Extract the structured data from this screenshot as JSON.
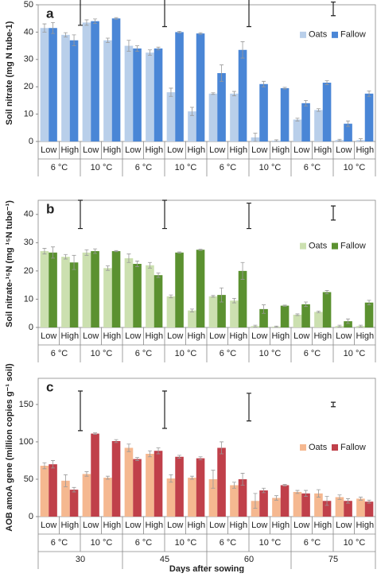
{
  "chart_data": [
    {
      "type": "bar",
      "label": "a",
      "y_label": "Soil nitrate (mg N tube-1)",
      "categories": [
        "Low",
        "High",
        "Low",
        "High",
        "Low",
        "High",
        "Low",
        "High",
        "Low",
        "High",
        "Low",
        "High",
        "Low",
        "High",
        "Low",
        "High"
      ],
      "groups": [
        "6 °C",
        "10 °C",
        "6 °C",
        "10 °C",
        "6 °C",
        "10 °C",
        "6 °C",
        "10 °C"
      ],
      "series": [
        {
          "name": "Oats",
          "color": "#b9cfea",
          "values": [
            41.5,
            39,
            43.5,
            37,
            35,
            32.5,
            18,
            11,
            17.5,
            17.5,
            1.5,
            0.3,
            8,
            11.5,
            0.5,
            0.5
          ],
          "errors": [
            1.5,
            0.8,
            1,
            0.8,
            2,
            1,
            1.5,
            1.5,
            0.3,
            0.8,
            1.5,
            0.3,
            0.5,
            0.5,
            0.3,
            0.5
          ]
        },
        {
          "name": "Fallow",
          "color": "#4a86d6",
          "values": [
            41.5,
            37,
            44,
            45,
            34,
            34,
            40,
            39.5,
            25,
            33.5,
            21,
            19.5,
            14,
            21.5,
            6.5,
            17.5
          ],
          "errors": [
            2,
            2,
            0.8,
            0.3,
            1,
            0.5,
            0.3,
            0.3,
            3,
            3,
            1,
            0.3,
            1,
            0.7,
            1,
            1
          ]
        }
      ],
      "lsd": [
        [
          42.5,
          52.5
        ],
        [
          42,
          52
        ],
        [
          42,
          52
        ],
        [
          46,
          51
        ]
      ],
      "ylim": [
        0,
        50
      ],
      "yticks": [
        0,
        10,
        20,
        30,
        40,
        50
      ]
    },
    {
      "type": "bar",
      "label": "b",
      "y_label": "Soil nitrate-¹⁵N (mg ¹⁵N tube⁻¹)",
      "categories": [
        "Low",
        "High",
        "Low",
        "High",
        "Low",
        "High",
        "Low",
        "High",
        "Low",
        "High",
        "Low",
        "High",
        "Low",
        "High",
        "Low",
        "High"
      ],
      "groups": [
        "6 °C",
        "10 °C",
        "6 °C",
        "10 °C",
        "6 °C",
        "10 °C",
        "6 °C",
        "10 °C"
      ],
      "series": [
        {
          "name": "Oats",
          "color": "#cce0b0",
          "values": [
            27,
            25,
            26.5,
            21,
            24.5,
            22,
            11,
            6,
            11,
            9.5,
            0.5,
            0.3,
            4.5,
            5.5,
            0.5,
            0.5
          ],
          "errors": [
            1,
            0.8,
            1,
            0.8,
            1.5,
            1,
            0.5,
            0.5,
            0.3,
            0.8,
            0.3,
            0.2,
            0.3,
            0.3,
            0.3,
            0.3
          ]
        },
        {
          "name": "Fallow",
          "color": "#5b9130",
          "values": [
            26.5,
            23,
            27,
            27,
            22.5,
            18.5,
            26.5,
            27.5,
            11.5,
            20,
            6.5,
            7.7,
            8.2,
            12.5,
            2.2,
            8.8
          ],
          "errors": [
            2,
            2.5,
            0.8,
            0.2,
            1,
            0.8,
            0.2,
            0.2,
            2.5,
            3,
            1.5,
            0.2,
            0.8,
            0.6,
            0.8,
            0.8
          ]
        }
      ],
      "lsd": [
        [
          35,
          45
        ],
        [
          35,
          45
        ],
        [
          35,
          44
        ],
        [
          38,
          43
        ]
      ],
      "ylim": [
        0,
        45
      ],
      "yticks": [
        0,
        10,
        20,
        30,
        40
      ]
    },
    {
      "type": "bar",
      "label": "c",
      "y_label": "AOB amoA gene (million copies g⁻¹ soil)",
      "categories": [
        "Low",
        "High",
        "Low",
        "High",
        "Low",
        "High",
        "Low",
        "High",
        "Low",
        "High",
        "Low",
        "High",
        "Low",
        "High",
        "Low",
        "High"
      ],
      "groups": [
        "6 °C",
        "10 °C",
        "6 °C",
        "10 °C",
        "6 °C",
        "10 °C",
        "6 °C",
        "10 °C"
      ],
      "days": [
        "30",
        "45",
        "60",
        "75"
      ],
      "x_label": "Days after sowing",
      "series": [
        {
          "name": "Oats",
          "color": "#f5b890",
          "values": [
            68,
            48,
            57,
            52,
            92,
            84,
            51,
            52,
            50,
            42,
            21,
            25,
            33,
            31,
            26,
            24
          ],
          "errors": [
            4,
            8,
            3,
            2,
            5,
            4,
            5,
            2,
            12,
            4,
            10,
            3,
            2,
            5,
            3,
            2
          ]
        },
        {
          "name": "Fallow",
          "color": "#c0404a",
          "values": [
            70,
            36,
            111,
            101,
            77,
            88,
            80,
            78,
            92,
            50,
            35,
            42,
            31,
            21,
            21,
            20
          ],
          "errors": [
            5,
            3,
            1,
            2,
            2,
            4,
            2,
            2,
            8,
            8,
            3,
            1,
            4,
            6,
            3,
            2
          ]
        }
      ],
      "lsd": [
        [
          115,
          168
        ],
        [
          118,
          168
        ],
        [
          128,
          165
        ],
        [
          147,
          153
        ]
      ],
      "ylim": [
        0,
        185
      ],
      "yticks": [
        0,
        50,
        100,
        150
      ]
    }
  ]
}
